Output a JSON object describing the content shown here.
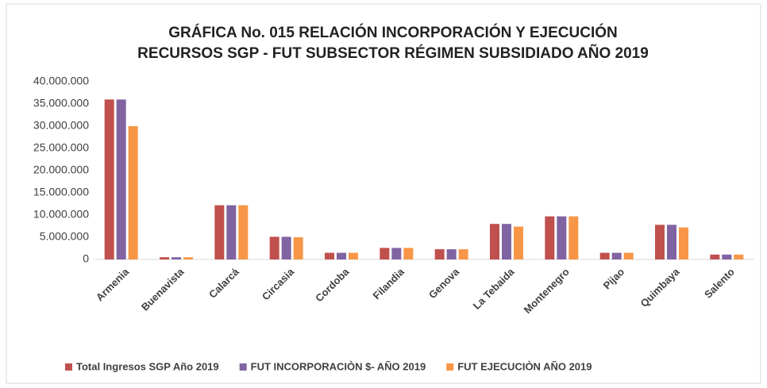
{
  "chart_data": {
    "type": "bar",
    "title": [
      "GRÁFICA No. 015 RELACIÓN INCORPORACIÓN  Y EJECUCIÓN",
      "RECURSOS SGP - FUT SUBSECTOR RÉGIMEN SUBSIDIADO  AÑO 2019"
    ],
    "categories": [
      "Armenia",
      "Buenavista",
      "Calarcá",
      "Circasia",
      "Cordoba",
      "Filandia",
      "Genova",
      "La Tebaida",
      "Montenegro",
      "Pijao",
      "Quimbaya",
      "Salento"
    ],
    "series": [
      {
        "name": "Total Ingresos SGP Año 2019",
        "color": "#c0504d",
        "values": [
          36000000,
          500000,
          12200000,
          5100000,
          1500000,
          2600000,
          2300000,
          8000000,
          9700000,
          1500000,
          7800000,
          1100000
        ]
      },
      {
        "name": "FUT INCORPORACIÒN $- AÑO 2019",
        "color": "#8064a2",
        "values": [
          36000000,
          500000,
          12200000,
          5100000,
          1500000,
          2600000,
          2300000,
          8000000,
          9700000,
          1500000,
          7800000,
          1100000
        ]
      },
      {
        "name": "FUT EJECUCIÒN AÑO 2019",
        "color": "#f79646",
        "values": [
          30000000,
          500000,
          12200000,
          5000000,
          1500000,
          2600000,
          2300000,
          7400000,
          9700000,
          1500000,
          7200000,
          1100000
        ]
      }
    ],
    "ylim": [
      0,
      40000000
    ],
    "yticks": [
      0,
      {
        "value": 5000000,
        "label": "5.000.000"
      },
      {
        "value": 10000000,
        "label": "10.000.000"
      },
      {
        "value": 15000000,
        "label": "15.000.000"
      },
      {
        "value": 20000000,
        "label": "20.000.000"
      },
      {
        "value": 25000000,
        "label": "25.000.000"
      },
      {
        "value": 30000000,
        "label": "30.000.000"
      },
      {
        "value": 35000000,
        "label": "35.000.000"
      },
      {
        "value": 40000000,
        "label": "40.000.000"
      }
    ],
    "grid": false,
    "legend": "bottom"
  }
}
